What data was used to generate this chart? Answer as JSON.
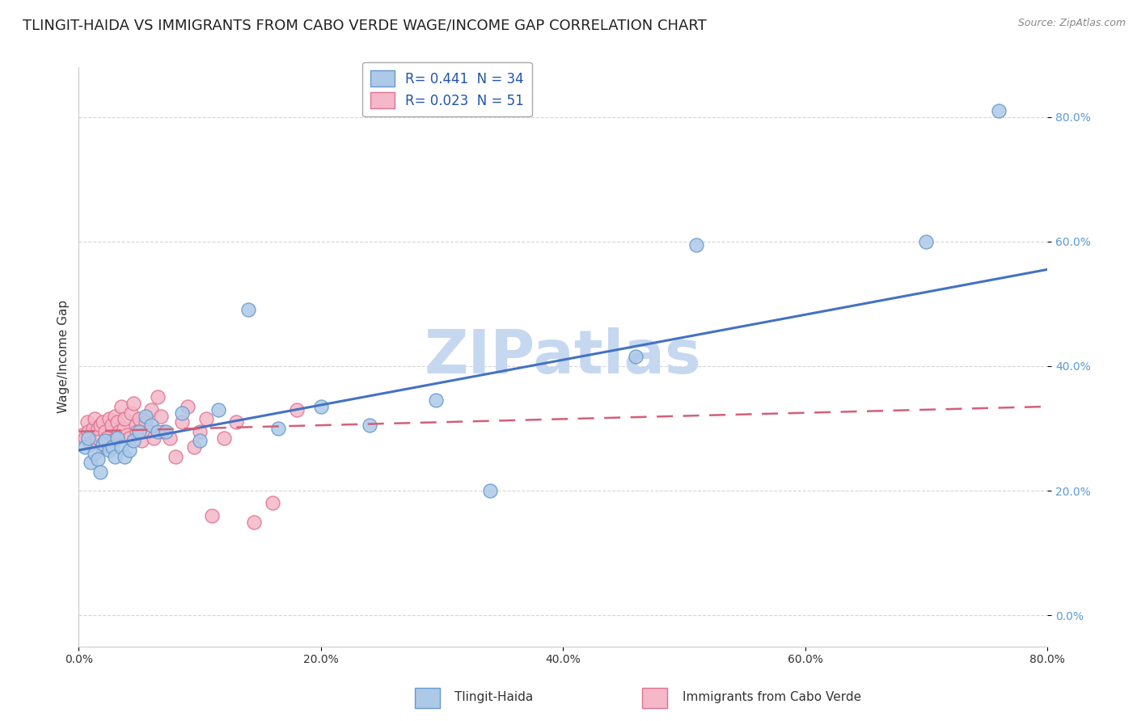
{
  "title": "TLINGIT-HAIDA VS IMMIGRANTS FROM CABO VERDE WAGE/INCOME GAP CORRELATION CHART",
  "source": "Source: ZipAtlas.com",
  "ylabel": "Wage/Income Gap",
  "xlim": [
    0.0,
    0.8
  ],
  "ylim": [
    -0.05,
    0.88
  ],
  "xticks": [
    0.0,
    0.2,
    0.4,
    0.6,
    0.8
  ],
  "yticks": [
    0.0,
    0.2,
    0.4,
    0.6,
    0.8
  ],
  "xtick_labels": [
    "0.0%",
    "20.0%",
    "40.0%",
    "60.0%",
    "80.0%"
  ],
  "ytick_labels": [
    "0.0%",
    "20.0%",
    "40.0%",
    "60.0%",
    "80.0%"
  ],
  "series1_name": "Tlingit-Haida",
  "series1_color": "#adc9e8",
  "series1_edge_color": "#6699cc",
  "series1_R": 0.441,
  "series1_N": 34,
  "series1_x": [
    0.005,
    0.008,
    0.01,
    0.013,
    0.016,
    0.018,
    0.02,
    0.022,
    0.025,
    0.028,
    0.03,
    0.032,
    0.035,
    0.038,
    0.042,
    0.045,
    0.05,
    0.055,
    0.06,
    0.065,
    0.072,
    0.085,
    0.1,
    0.115,
    0.14,
    0.165,
    0.2,
    0.24,
    0.295,
    0.34,
    0.46,
    0.51,
    0.7,
    0.76
  ],
  "series1_y": [
    0.27,
    0.285,
    0.245,
    0.26,
    0.25,
    0.23,
    0.275,
    0.28,
    0.265,
    0.27,
    0.255,
    0.285,
    0.27,
    0.255,
    0.265,
    0.28,
    0.295,
    0.32,
    0.305,
    0.295,
    0.295,
    0.325,
    0.28,
    0.33,
    0.49,
    0.3,
    0.335,
    0.305,
    0.345,
    0.2,
    0.415,
    0.595,
    0.6,
    0.81
  ],
  "series2_name": "Immigrants from Cabo Verde",
  "series2_color": "#f4b8c8",
  "series2_edge_color": "#e07090",
  "series2_R": 0.023,
  "series2_N": 51,
  "series2_x": [
    0.003,
    0.005,
    0.007,
    0.008,
    0.01,
    0.012,
    0.013,
    0.015,
    0.016,
    0.018,
    0.019,
    0.02,
    0.022,
    0.023,
    0.025,
    0.027,
    0.028,
    0.03,
    0.032,
    0.033,
    0.035,
    0.037,
    0.038,
    0.04,
    0.042,
    0.043,
    0.045,
    0.047,
    0.048,
    0.05,
    0.052,
    0.055,
    0.058,
    0.06,
    0.062,
    0.065,
    0.068,
    0.07,
    0.075,
    0.08,
    0.085,
    0.09,
    0.095,
    0.1,
    0.105,
    0.11,
    0.12,
    0.13,
    0.145,
    0.16,
    0.18
  ],
  "series2_y": [
    0.29,
    0.285,
    0.31,
    0.295,
    0.275,
    0.3,
    0.315,
    0.285,
    0.3,
    0.305,
    0.27,
    0.31,
    0.295,
    0.285,
    0.315,
    0.305,
    0.28,
    0.32,
    0.31,
    0.295,
    0.335,
    0.3,
    0.315,
    0.29,
    0.285,
    0.325,
    0.34,
    0.305,
    0.295,
    0.315,
    0.28,
    0.31,
    0.295,
    0.33,
    0.285,
    0.35,
    0.32,
    0.295,
    0.285,
    0.255,
    0.31,
    0.335,
    0.27,
    0.295,
    0.315,
    0.16,
    0.285,
    0.31,
    0.15,
    0.18,
    0.33
  ],
  "legend1_label": "R= 0.441  N = 34",
  "legend2_label": "R= 0.023  N = 51",
  "line1_color": "#4472c4",
  "line2_color": "#d45f7a",
  "background_color": "#ffffff",
  "grid_color": "#cccccc",
  "watermark_text": "ZIPatlas",
  "watermark_color": "#c5d8f0",
  "title_fontsize": 13,
  "axis_fontsize": 11,
  "tick_fontsize": 10,
  "legend_fontsize": 12
}
